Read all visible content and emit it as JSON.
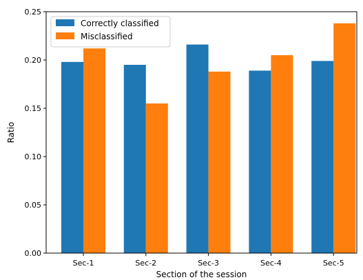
{
  "chart_data": {
    "type": "bar",
    "categories": [
      "Sec-1",
      "Sec-2",
      "Sec-3",
      "Sec-4",
      "Sec-5"
    ],
    "series": [
      {
        "name": "Correctly classified",
        "values": [
          0.198,
          0.195,
          0.216,
          0.189,
          0.199
        ],
        "color": "#1f77b4"
      },
      {
        "name": "Misclassified",
        "values": [
          0.212,
          0.155,
          0.188,
          0.205,
          0.238
        ],
        "color": "#ff7f0e"
      }
    ],
    "xlabel": "Section of the session",
    "ylabel": "Ratio",
    "ylim": [
      0,
      0.25
    ],
    "yticks": [
      "0.00",
      "0.05",
      "0.10",
      "0.15",
      "0.20",
      "0.25"
    ],
    "grid": false,
    "legend_position": "top-left"
  }
}
